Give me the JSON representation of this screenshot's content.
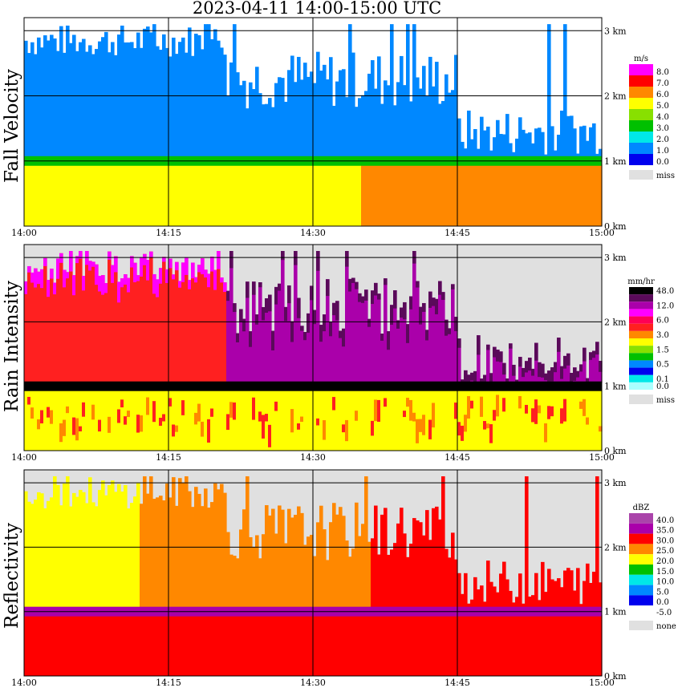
{
  "title": "2023-04-11   14:00-15:00 UTC",
  "chart_data": [
    {
      "type": "heatmap",
      "ylabel": "Fall Velocity",
      "x_ticks": [
        "14:00",
        "14:15",
        "14:30",
        "14:45",
        "15:00"
      ],
      "y_ticks": [
        "0 km",
        "1 km",
        "2 km",
        "3 km"
      ],
      "ylim_km": [
        0,
        3.2
      ],
      "grid": true,
      "legend_unit": "m/s",
      "legend": [
        {
          "label": "8.0",
          "color": "#ff00ff"
        },
        {
          "label": "7.0",
          "color": "#ff0000"
        },
        {
          "label": "6.0",
          "color": "#ff8800"
        },
        {
          "label": "5.0",
          "color": "#ffff00"
        },
        {
          "label": "4.0",
          "color": "#88e000"
        },
        {
          "label": "3.0",
          "color": "#00c000"
        },
        {
          "label": "2.0",
          "color": "#00e8e8"
        },
        {
          "label": "1.0",
          "color": "#0088ff"
        },
        {
          "label": "0.0",
          "color": "#0000ee"
        }
      ],
      "missing_label": "miss",
      "layers": [
        {
          "color": "#0088ff",
          "band": "upper",
          "level": "snow"
        },
        {
          "color": "#00c000",
          "band": "melting-layer",
          "level": "bright band ~1 km"
        },
        {
          "color": "#ffff00",
          "band": "lower-early",
          "level": "rain 14:00-14:35"
        },
        {
          "color": "#ff8800",
          "band": "lower-late",
          "level": "rain 14:35-15:00"
        }
      ]
    },
    {
      "type": "heatmap",
      "ylabel": "Rain Intensity",
      "x_ticks": [
        "14:00",
        "14:15",
        "14:30",
        "14:45",
        "15:00"
      ],
      "y_ticks": [
        "0 km",
        "1 km",
        "2 km",
        "3 km"
      ],
      "ylim_km": [
        0,
        3.2
      ],
      "grid": true,
      "legend_unit": "mm/hr",
      "legend": [
        {
          "label": "48.0",
          "color": "#000000"
        },
        {
          "label": "",
          "color": "#5a0a5a"
        },
        {
          "label": "12.0",
          "color": "#aa00aa"
        },
        {
          "label": "",
          "color": "#ff00ff"
        },
        {
          "label": "6.0",
          "color": "#ff0055"
        },
        {
          "label": "",
          "color": "#ff2020"
        },
        {
          "label": "3.0",
          "color": "#ff8800"
        },
        {
          "label": "",
          "color": "#ffff00"
        },
        {
          "label": "1.5",
          "color": "#88e000"
        },
        {
          "label": "",
          "color": "#00c000"
        },
        {
          "label": "0.5",
          "color": "#0088ff"
        },
        {
          "label": "",
          "color": "#0000ee"
        },
        {
          "label": "0.1",
          "color": "#00e8e8"
        },
        {
          "label": "0.0",
          "color": "#aaffff"
        }
      ],
      "missing_label": "miss",
      "layers": [
        {
          "color": "#ff2020",
          "band": "upper-early",
          "level": "~6 mm/hr"
        },
        {
          "color": "#aa00aa",
          "band": "upper-late",
          "level": "~12 mm/hr"
        },
        {
          "color": "#000000",
          "band": "melting-layer",
          "level": ">48 mm/hr"
        },
        {
          "color": "#ffff00",
          "band": "lower",
          "level": "1.5-6 mm/hr"
        }
      ]
    },
    {
      "type": "heatmap",
      "ylabel": "Reflectivity",
      "x_ticks": [
        "14:00",
        "14:15",
        "14:30",
        "14:45",
        "15:00"
      ],
      "y_ticks": [
        "0 km",
        "1 km",
        "2 km",
        "3 km"
      ],
      "ylim_km": [
        0,
        3.2
      ],
      "grid": true,
      "legend_unit": "dBZ",
      "legend": [
        {
          "label": "40.0",
          "color": "#aa44aa"
        },
        {
          "label": "35.0",
          "color": "#aa00aa"
        },
        {
          "label": "30.0",
          "color": "#ff0000"
        },
        {
          "label": "25.0",
          "color": "#ff8800"
        },
        {
          "label": "20.0",
          "color": "#ffff00"
        },
        {
          "label": "15.0",
          "color": "#00c000"
        },
        {
          "label": "10.0",
          "color": "#00e8e8"
        },
        {
          "label": "5.0",
          "color": "#0088ff"
        },
        {
          "label": "0.0",
          "color": "#0000ee"
        },
        {
          "label": "-5.0",
          "color": "#ffffff"
        }
      ],
      "missing_label": "none",
      "layers": [
        {
          "color": "#ffff00",
          "band": "upper-early",
          "level": "~20 dBZ"
        },
        {
          "color": "#ff8800",
          "band": "upper-mid",
          "level": "~25 dBZ"
        },
        {
          "color": "#ff0000",
          "band": "upper-late",
          "level": "~30 dBZ"
        },
        {
          "color": "#aa00aa",
          "band": "melting-layer",
          "level": "~35 dBZ"
        },
        {
          "color": "#ff0000",
          "band": "lower",
          "level": "~30 dBZ"
        }
      ]
    }
  ]
}
